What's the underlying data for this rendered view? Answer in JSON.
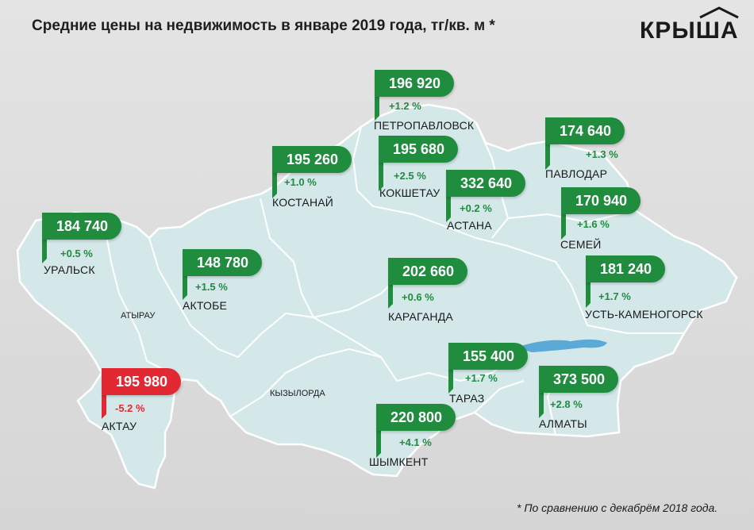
{
  "title": "Средние цены на недвижимость в январе 2019 года, тг/кв. м *",
  "logo": "КРЫША",
  "footnote": "* По сравнению с декабрём 2018 года.",
  "colors": {
    "increase": "#1f8c3e",
    "decrease": "#e22832",
    "land": "#d4e8ea",
    "border": "#ffffff"
  },
  "regions": {
    "atyrau": "АТЫРАУ",
    "kyzylorda": "КЫЗЫЛОРДА"
  },
  "cities": [
    {
      "name": "ПЕТРОПАВЛОВСК",
      "price": "196 920",
      "change": "+1.2 %",
      "trend": "up"
    },
    {
      "name": "ПАВЛОДАР",
      "price": "174 640",
      "change": "+1.3 %",
      "trend": "up"
    },
    {
      "name": "КОСТАНАЙ",
      "price": "195 260",
      "change": "+1.0 %",
      "trend": "up"
    },
    {
      "name": "КОКШЕТАУ",
      "price": "195 680",
      "change": "+2.5 %",
      "trend": "up"
    },
    {
      "name": "АСТАНА",
      "price": "332 640",
      "change": "+0.2 %",
      "trend": "up"
    },
    {
      "name": "СЕМЕЙ",
      "price": "170 940",
      "change": "+1.6 %",
      "trend": "up"
    },
    {
      "name": "УРАЛЬСК",
      "price": "184 740",
      "change": "+0.5 %",
      "trend": "up"
    },
    {
      "name": "АКТОБЕ",
      "price": "148 780",
      "change": "+1.5 %",
      "trend": "up"
    },
    {
      "name": "КАРАГАНДА",
      "price": "202 660",
      "change": "+0.6 %",
      "trend": "up"
    },
    {
      "name": "УСТЬ-КАМЕНОГОРСК",
      "price": "181 240",
      "change": "+1.7 %",
      "trend": "up"
    },
    {
      "name": "ТАРАЗ",
      "price": "155 400",
      "change": "+1.7 %",
      "trend": "up"
    },
    {
      "name": "АЛМАТЫ",
      "price": "373 500",
      "change": "+2.8 %",
      "trend": "up"
    },
    {
      "name": "АКТАУ",
      "price": "195 980",
      "change": "-5.2 %",
      "trend": "down"
    },
    {
      "name": "ШЫМКЕНТ",
      "price": "220 800",
      "change": "+4.1 %",
      "trend": "up"
    }
  ]
}
